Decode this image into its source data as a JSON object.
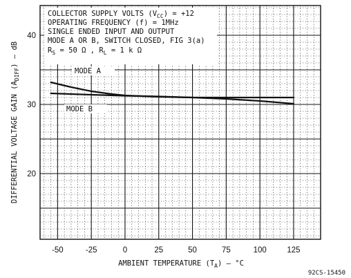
{
  "chart_data": {
    "type": "line",
    "xlabel": "AMBIENT TEMPERATURE (T",
    "xlabel_sub": "A",
    "xlabel_tail": ") — °C",
    "ylabel": "DIFFERENTIAL VOLTAGE GAIN (A",
    "ylabel_sub": "DIFF",
    "ylabel_tail": ") — dB",
    "xlim": [
      -63,
      145
    ],
    "ylim": [
      10.5,
      44.3
    ],
    "x_ticks": [
      -50,
      -25,
      0,
      25,
      50,
      75,
      100,
      125
    ],
    "x_tick_labels": [
      "-50",
      "-25",
      "0",
      "25",
      "50",
      "75",
      "100",
      "125"
    ],
    "y_ticks": [
      20,
      30,
      40
    ],
    "y_tick_labels": [
      "20",
      "30",
      "40"
    ],
    "grid": true,
    "series": [
      {
        "name": "MODE A",
        "x": [
          -55,
          -40,
          -25,
          -10,
          0,
          25,
          50,
          75,
          100,
          125
        ],
        "y": [
          33.2,
          32.5,
          31.9,
          31.5,
          31.3,
          31.1,
          31.0,
          31.0,
          31.0,
          31.0
        ]
      },
      {
        "name": "MODE B",
        "x": [
          -55,
          -25,
          0,
          25,
          50,
          75,
          100,
          125
        ],
        "y": [
          31.6,
          31.4,
          31.25,
          31.15,
          31.0,
          30.8,
          30.5,
          30.1
        ]
      }
    ],
    "annotations": [
      "COLLECTOR SUPPLY VOLTS (V",
      "CC",
      ") = +12",
      "OPERATING FREQUENCY (f) = 1MHz",
      "SINGLE ENDED INPUT AND OUTPUT",
      "MODE A OR B, SWITCH CLOSED, FIG 3(a)",
      "R",
      "S",
      " = 50 Ω ,  R",
      "L",
      " = 1 k Ω"
    ],
    "figure_code": "92CS-15450"
  }
}
